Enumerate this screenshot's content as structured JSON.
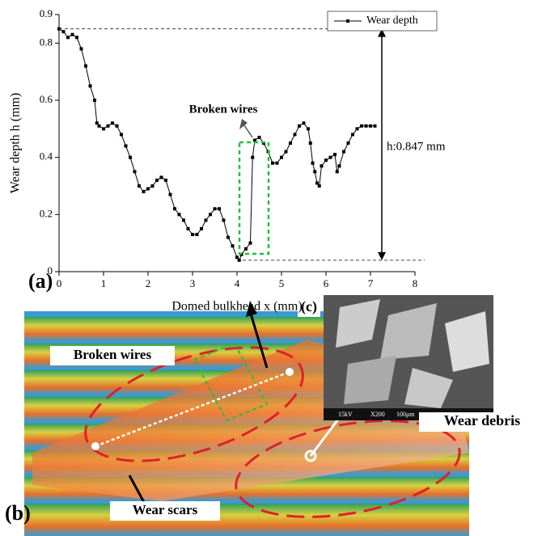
{
  "chart_data": {
    "type": "line",
    "x_label": "Domed bulkhead x (mm)",
    "y_label": "Wear depth h (mm)",
    "xlim": [
      0,
      8
    ],
    "xticks": [
      0,
      1,
      2,
      3,
      4,
      5,
      6,
      7,
      8
    ],
    "ylim": [
      0,
      0.9
    ],
    "yticks": [
      0,
      0.2,
      0.4,
      0.6,
      0.8,
      0.9
    ],
    "legend": "top-right",
    "annotations": [
      "Broken wires",
      "h:0.847 mm"
    ],
    "series": [
      {
        "name": "Wear depth",
        "color": "#000000",
        "x": [
          0,
          0.1,
          0.2,
          0.3,
          0.4,
          0.5,
          0.6,
          0.7,
          0.8,
          0.85,
          0.9,
          1.0,
          1.1,
          1.2,
          1.3,
          1.4,
          1.5,
          1.6,
          1.7,
          1.8,
          1.9,
          2.0,
          2.1,
          2.2,
          2.3,
          2.4,
          2.5,
          2.6,
          2.7,
          2.8,
          2.9,
          3.0,
          3.1,
          3.2,
          3.3,
          3.4,
          3.5,
          3.6,
          3.7,
          3.8,
          3.9,
          4.0,
          4.05,
          4.1,
          4.2,
          4.3,
          4.35,
          4.4,
          4.5,
          4.6,
          4.7,
          4.8,
          4.9,
          5.0,
          5.1,
          5.2,
          5.3,
          5.4,
          5.5,
          5.6,
          5.65,
          5.7,
          5.75,
          5.8,
          5.85,
          5.9,
          6.0,
          6.1,
          6.2,
          6.25,
          6.3,
          6.4,
          6.5,
          6.6,
          6.7,
          6.8,
          6.9,
          7.0,
          7.1
        ],
        "values": [
          0.85,
          0.84,
          0.82,
          0.83,
          0.82,
          0.78,
          0.72,
          0.65,
          0.6,
          0.52,
          0.51,
          0.5,
          0.51,
          0.52,
          0.51,
          0.48,
          0.44,
          0.4,
          0.35,
          0.3,
          0.28,
          0.29,
          0.3,
          0.32,
          0.33,
          0.32,
          0.27,
          0.22,
          0.2,
          0.18,
          0.15,
          0.13,
          0.13,
          0.15,
          0.18,
          0.2,
          0.22,
          0.22,
          0.18,
          0.12,
          0.09,
          0.05,
          0.04,
          0.06,
          0.08,
          0.1,
          0.4,
          0.46,
          0.47,
          0.45,
          0.42,
          0.38,
          0.38,
          0.4,
          0.42,
          0.45,
          0.48,
          0.51,
          0.52,
          0.5,
          0.45,
          0.38,
          0.35,
          0.31,
          0.3,
          0.37,
          0.39,
          0.4,
          0.41,
          0.35,
          0.37,
          0.42,
          0.45,
          0.48,
          0.5,
          0.51,
          0.51,
          0.51,
          0.51
        ]
      }
    ]
  },
  "figure": {
    "panel_a": "(a)",
    "panel_b": "(b)",
    "panel_c": "(c)",
    "labels_b": [
      "Broken wires",
      "Wear debris",
      "Wear scars"
    ],
    "sem_info": [
      "15kV",
      "X200",
      "100μm"
    ]
  }
}
